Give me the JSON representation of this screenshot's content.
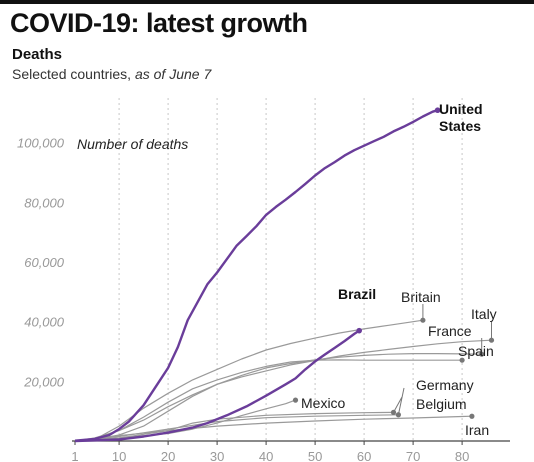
{
  "title": "COVID-19: latest growth",
  "subtitle": "Deaths",
  "note_main": "Selected countries, ",
  "note_italic": "as of June 7",
  "chart_data": {
    "type": "line",
    "ylabel": "Number of deaths",
    "ylim": [
      0,
      115000
    ],
    "xlim": [
      1,
      87
    ],
    "yticks": [
      20000,
      40000,
      60000,
      80000,
      100000
    ],
    "ytick_labels": [
      "20,000",
      "40,000",
      "60,000",
      "80,000",
      "100,000"
    ],
    "xticks": [
      1,
      10,
      20,
      30,
      40,
      50,
      60,
      70,
      80
    ],
    "xtick_labels": [
      "1",
      "10",
      "20",
      "30",
      "40",
      "50",
      "60",
      "70",
      "80"
    ],
    "grid": "vertical",
    "colors": {
      "highlight": "#6a3d9a",
      "other": "#9a9a9a"
    },
    "series": [
      {
        "name": "United States",
        "highlight": true,
        "end_marker": true,
        "x": [
          1,
          5,
          8,
          10,
          12,
          15,
          18,
          20,
          22,
          24,
          26,
          28,
          30,
          32,
          34,
          36,
          38,
          40,
          42,
          44,
          46,
          48,
          50,
          52,
          54,
          56,
          58,
          60,
          62,
          64,
          66,
          68,
          70,
          72,
          74,
          75
        ],
        "y": [
          100,
          700,
          2000,
          4000,
          6500,
          12000,
          19500,
          24500,
          31500,
          40500,
          46500,
          52500,
          56500,
          61000,
          65500,
          68700,
          72000,
          75800,
          78500,
          80900,
          83500,
          86200,
          89000,
          91500,
          93500,
          95700,
          97500,
          99000,
          100500,
          102000,
          103800,
          105300,
          107000,
          108800,
          110400,
          110900
        ]
      },
      {
        "name": "Brazil",
        "highlight": true,
        "end_marker": true,
        "x": [
          1,
          10,
          15,
          20,
          25,
          28,
          32,
          36,
          40,
          44,
          46,
          48,
          50,
          52,
          54,
          56,
          58,
          59
        ],
        "y": [
          0,
          500,
          1500,
          2800,
          4500,
          6000,
          8600,
          11600,
          15200,
          19000,
          21000,
          24000,
          26700,
          29000,
          31200,
          33500,
          35900,
          37000
        ]
      },
      {
        "name": "Britain",
        "highlight": false,
        "end_marker": true,
        "x": [
          1,
          5,
          10,
          15,
          20,
          25,
          30,
          35,
          40,
          45,
          50,
          55,
          60,
          65,
          70,
          72
        ],
        "y": [
          0,
          500,
          5000,
          11000,
          16000,
          20500,
          24000,
          27500,
          30500,
          32700,
          34500,
          36200,
          37600,
          38800,
          40000,
          40500
        ]
      },
      {
        "name": "Italy",
        "highlight": false,
        "end_marker": true,
        "x": [
          1,
          5,
          10,
          15,
          20,
          25,
          30,
          35,
          40,
          45,
          50,
          55,
          60,
          65,
          70,
          75,
          80,
          86
        ],
        "y": [
          0,
          1000,
          3500,
          7000,
          11500,
          15500,
          19000,
          21500,
          23500,
          25500,
          27000,
          28500,
          29700,
          30700,
          31700,
          32600,
          33300,
          33800
        ]
      },
      {
        "name": "France",
        "highlight": false,
        "end_marker": true,
        "x": [
          1,
          5,
          10,
          15,
          20,
          25,
          30,
          35,
          40,
          45,
          50,
          55,
          60,
          65,
          70,
          75,
          80,
          84
        ],
        "y": [
          0,
          500,
          2000,
          5000,
          10000,
          15000,
          19000,
          22000,
          24500,
          26000,
          27200,
          28100,
          28700,
          29100,
          29300,
          29300,
          29200,
          29100
        ]
      },
      {
        "name": "Spain",
        "highlight": false,
        "end_marker": true,
        "x": [
          1,
          5,
          10,
          15,
          20,
          25,
          30,
          35,
          40,
          45,
          50,
          55,
          60,
          65,
          70,
          75,
          80
        ],
        "y": [
          0,
          800,
          3500,
          8000,
          13000,
          17500,
          20500,
          23000,
          25000,
          26500,
          27100,
          27200,
          27100,
          27100,
          27100,
          27100,
          27100
        ]
      },
      {
        "name": "Mexico",
        "highlight": false,
        "end_marker": true,
        "x": [
          1,
          10,
          20,
          25,
          30,
          35,
          40,
          44,
          46
        ],
        "y": [
          0,
          1000,
          2500,
          4000,
          6000,
          8500,
          10800,
          12500,
          13700
        ]
      },
      {
        "name": "Germany",
        "highlight": false,
        "end_marker": true,
        "x": [
          1,
          10,
          20,
          30,
          40,
          50,
          60,
          67
        ],
        "y": [
          0,
          1500,
          4000,
          6500,
          7800,
          8300,
          8600,
          8800
        ]
      },
      {
        "name": "Belgium",
        "highlight": false,
        "end_marker": true,
        "x": [
          1,
          10,
          20,
          25,
          30,
          40,
          50,
          60,
          66
        ],
        "y": [
          0,
          1000,
          3500,
          6000,
          7300,
          8600,
          9200,
          9500,
          9600
        ]
      },
      {
        "name": "Iran",
        "highlight": false,
        "end_marker": true,
        "x": [
          1,
          10,
          20,
          30,
          40,
          50,
          60,
          70,
          80,
          82
        ],
        "y": [
          0,
          1800,
          3500,
          5000,
          6000,
          6700,
          7300,
          7700,
          8200,
          8300
        ]
      }
    ],
    "labels": [
      {
        "text": "United\nStates",
        "bold": true
      },
      {
        "text": "Brazil",
        "bold": true
      },
      {
        "text": "Britain",
        "bold": false
      },
      {
        "text": "Italy",
        "bold": false
      },
      {
        "text": "France",
        "bold": false
      },
      {
        "text": "Spain",
        "bold": false
      },
      {
        "text": "Mexico",
        "bold": false
      },
      {
        "text": "Germany",
        "bold": false
      },
      {
        "text": "Belgium",
        "bold": false
      },
      {
        "text": "Iran",
        "bold": false
      }
    ]
  }
}
